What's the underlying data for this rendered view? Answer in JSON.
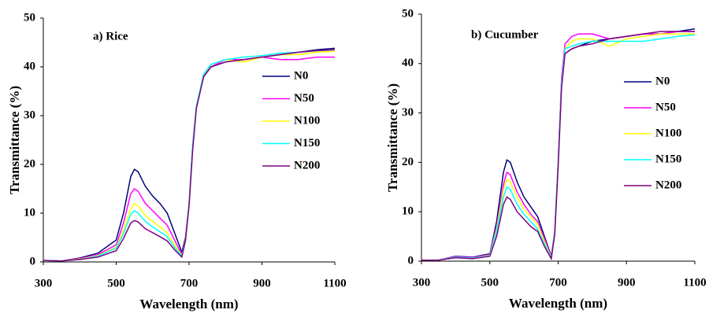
{
  "chart_data": [
    {
      "type": "line",
      "title": "a) Rice",
      "x_label": "Wavelength (nm)",
      "y_label": "Transmittance (%)",
      "x": [
        300,
        350,
        400,
        450,
        500,
        520,
        540,
        550,
        560,
        580,
        600,
        620,
        640,
        660,
        680,
        690,
        700,
        710,
        720,
        740,
        760,
        800,
        850,
        900,
        950,
        1000,
        1050,
        1100
      ],
      "xlim": [
        300,
        1100
      ],
      "xticks": [
        300,
        500,
        700,
        900,
        1100
      ],
      "ylim": [
        0,
        50
      ],
      "yticks": [
        0,
        10,
        20,
        30,
        40,
        50
      ],
      "series": [
        {
          "name": "N0",
          "color": "#000080",
          "values": [
            0.3,
            0.2,
            0.8,
            1.8,
            4.5,
            10,
            17.5,
            19,
            18.5,
            15.5,
            13.5,
            12,
            10,
            6,
            2,
            5,
            12,
            24,
            32,
            38,
            40,
            41,
            41.5,
            42,
            42.5,
            43,
            43.5,
            43.8
          ]
        },
        {
          "name": "N50",
          "color": "#ff00ff",
          "values": [
            0.3,
            0.2,
            0.7,
            1.5,
            3.5,
            8,
            14,
            15,
            14.5,
            12,
            10.5,
            9,
            7.5,
            4.5,
            1.5,
            4.5,
            12,
            24,
            32,
            38,
            40,
            41.5,
            41.5,
            42,
            41.5,
            41.5,
            42,
            42
          ]
        },
        {
          "name": "N100",
          "color": "#ffff00",
          "values": [
            0.3,
            0.2,
            0.6,
            1.3,
            3,
            6.5,
            11,
            12,
            11.5,
            9.5,
            8.3,
            7.2,
            6,
            3.5,
            1.3,
            4.5,
            12,
            24,
            32,
            38.5,
            40.5,
            41.5,
            41,
            42,
            42.5,
            42.5,
            43,
            43.2
          ]
        },
        {
          "name": "N150",
          "color": "#00ffff",
          "values": [
            0.3,
            0.2,
            0.5,
            1.2,
            2.8,
            5.8,
            9.8,
            10.5,
            10,
            8.3,
            7.2,
            6.2,
            5.2,
            3,
            1.2,
            4.5,
            12,
            24,
            32,
            38.5,
            40.5,
            41.5,
            42,
            42.3,
            42.8,
            43,
            43.3,
            43.5
          ]
        },
        {
          "name": "N200",
          "color": "#800080",
          "values": [
            0.3,
            0.2,
            0.5,
            1,
            2.3,
            4.8,
            8,
            8.5,
            8.2,
            6.8,
            6,
            5.2,
            4.3,
            2.5,
            1,
            4.3,
            11.5,
            23,
            31.5,
            38,
            40,
            41,
            41.5,
            42,
            42.5,
            43,
            43.3,
            43.5
          ]
        }
      ]
    },
    {
      "type": "line",
      "title": "b) Cucumber",
      "x_label": "Wavelength (nm)",
      "y_label": "Transmittance (%)",
      "x": [
        300,
        350,
        400,
        450,
        500,
        520,
        540,
        550,
        560,
        580,
        600,
        620,
        640,
        660,
        680,
        690,
        700,
        710,
        720,
        740,
        760,
        800,
        850,
        900,
        950,
        1000,
        1050,
        1100
      ],
      "xlim": [
        300,
        1100
      ],
      "xticks": [
        300,
        500,
        700,
        900,
        1100
      ],
      "ylim": [
        0,
        50
      ],
      "yticks": [
        0,
        10,
        20,
        30,
        40,
        50
      ],
      "series": [
        {
          "name": "N0",
          "color": "#000080",
          "values": [
            0.2,
            0.2,
            1,
            0.8,
            1.5,
            8,
            18,
            20.5,
            20,
            16,
            13,
            11,
            9,
            5,
            1,
            6,
            20,
            36,
            42,
            43,
            43.5,
            44.5,
            45,
            45.5,
            46,
            46,
            46.5,
            47
          ]
        },
        {
          "name": "N50",
          "color": "#ff00ff",
          "values": [
            0.2,
            0.2,
            0.9,
            0.7,
            1.3,
            7,
            15.5,
            18,
            17.5,
            14,
            11.5,
            9.5,
            8,
            4.5,
            0.8,
            6,
            20,
            37,
            44,
            45.5,
            46,
            46,
            45,
            45.5,
            46,
            46,
            46.5,
            46.5
          ]
        },
        {
          "name": "N100",
          "color": "#ffff00",
          "values": [
            0.2,
            0.2,
            0.8,
            0.6,
            1.2,
            6.5,
            14.5,
            16.5,
            16,
            13,
            10.5,
            9,
            7.5,
            4,
            0.7,
            6,
            20,
            36,
            43,
            44.5,
            45,
            45,
            43.5,
            45,
            45.5,
            46,
            46,
            46
          ]
        },
        {
          "name": "N150",
          "color": "#00ffff",
          "values": [
            0.2,
            0.2,
            0.8,
            0.6,
            1.1,
            6,
            13,
            15,
            14.5,
            11.5,
            9.5,
            8,
            6.5,
            3.5,
            0.6,
            6,
            20,
            36,
            43,
            43.5,
            44,
            44.5,
            44.5,
            44.5,
            44.5,
            45,
            45.5,
            45.8
          ]
        },
        {
          "name": "N200",
          "color": "#800080",
          "values": [
            0.2,
            0.2,
            0.7,
            0.5,
            1,
            5,
            11.5,
            13,
            12.5,
            10,
            8.5,
            7,
            6,
            3,
            0.5,
            5.5,
            19,
            35,
            42,
            43,
            43.5,
            44,
            45,
            45.5,
            46,
            46.5,
            46.5,
            46.5
          ]
        }
      ]
    }
  ]
}
